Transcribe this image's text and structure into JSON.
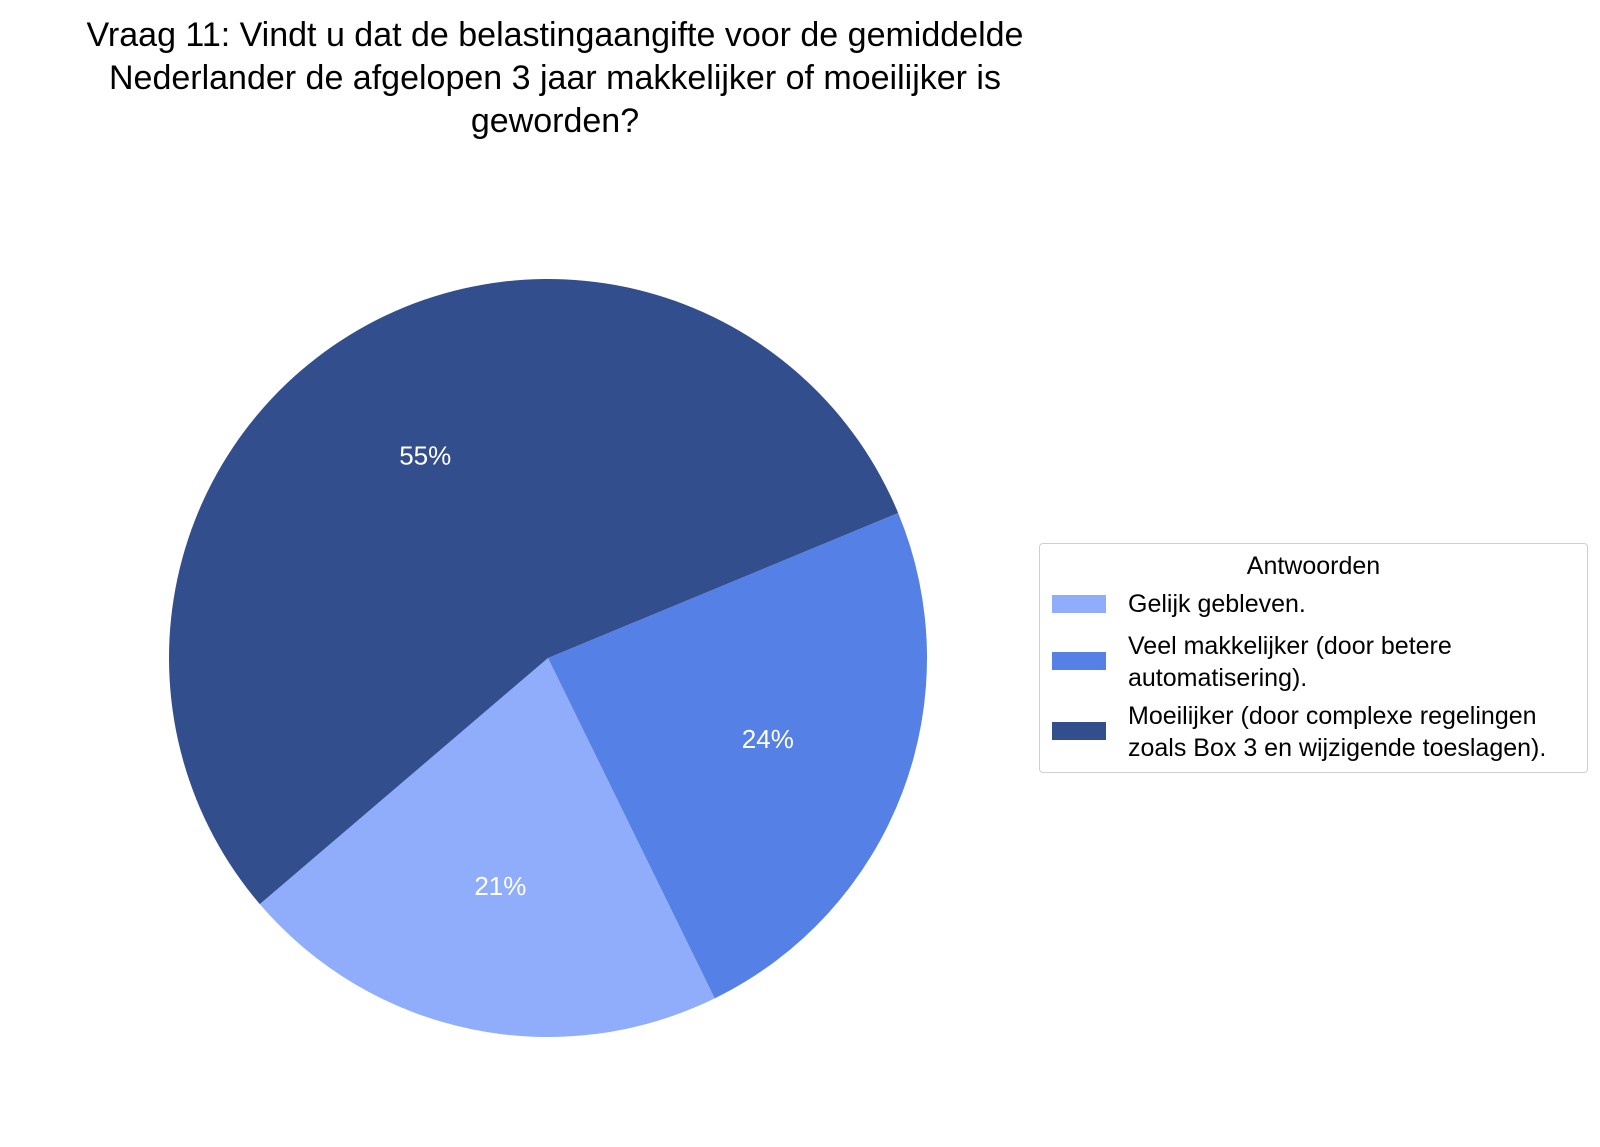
{
  "chart_data": {
    "type": "pie",
    "title_lines": [
      "Vraag 11: Vindt u dat de belastingaangifte voor de gemiddelde",
      "Nederlander de afgelopen 3 jaar makkelijker of moeilijker is",
      "geworden?"
    ],
    "legend": {
      "title": "Antwoorden",
      "placement": "right"
    },
    "slices": [
      {
        "label": "Gelijk gebleven.",
        "value": 21,
        "data_label": "21%",
        "color": "#8fadfb"
      },
      {
        "label": "Veel makkelijker (door betere automatisering).",
        "label_lines": [
          "Veel makkelijker (door betere",
          "automatisering)."
        ],
        "value": 24,
        "data_label": "24%",
        "color": "#5580e5"
      },
      {
        "label": "Moeilijker (door complexe regelingen zoals Box 3 en wijzigende toeslagen).",
        "label_lines": [
          "Moeilijker (door complexe regelingen",
          "zoals Box 3 en wijzigende toeslagen)."
        ],
        "value": 55,
        "data_label": "55%",
        "color": "#334e8c"
      }
    ]
  }
}
